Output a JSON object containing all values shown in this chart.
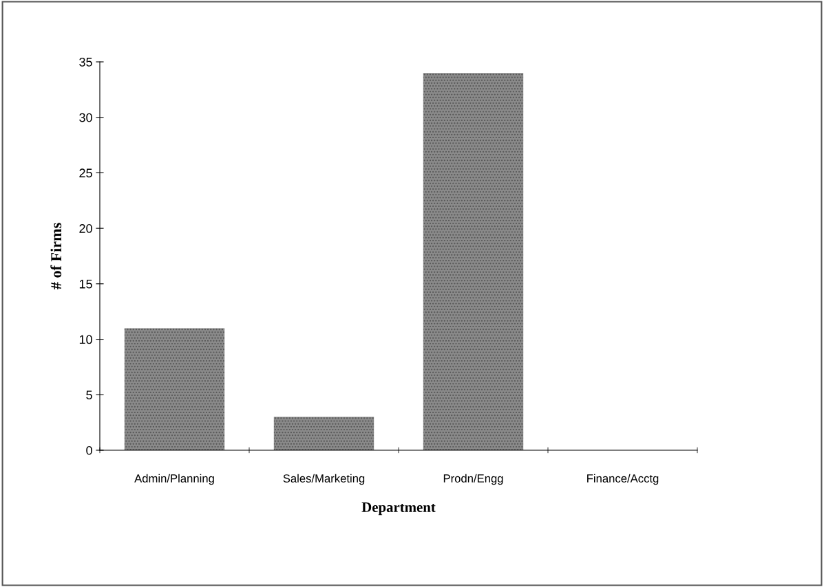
{
  "chart_data": {
    "type": "bar",
    "xlabel": "Department",
    "ylabel": "# of Firms",
    "categories": [
      "Admin/Planning",
      "Sales/Marketing",
      "Prodn/Engg",
      "Finance/Acctg"
    ],
    "values": [
      11,
      3,
      34,
      0
    ],
    "color": "#8a8a8a",
    "ylim": [
      0,
      35
    ],
    "yticks": [
      0,
      5,
      10,
      15,
      20,
      25,
      30,
      35
    ],
    "grid": false,
    "legend": false
  }
}
